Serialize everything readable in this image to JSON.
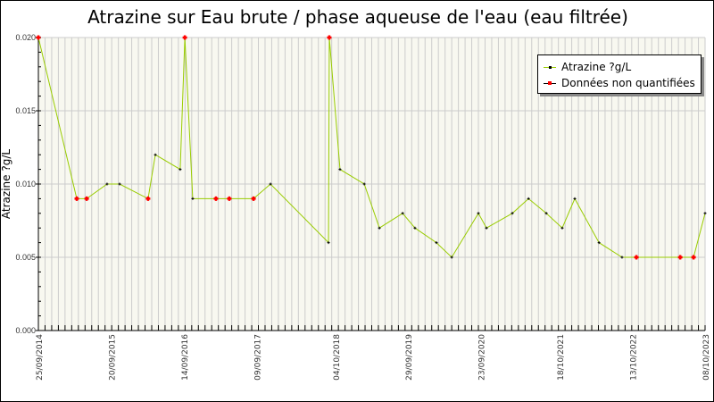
{
  "chart_data": {
    "type": "line",
    "title": "Atrazine sur Eau brute / phase aqueuse de l'eau (eau filtrée)",
    "xlabel": "",
    "ylabel": "Atrazine ?g/L",
    "ylim": [
      0,
      0.02
    ],
    "yticks": [
      "0.000",
      "0.005",
      "0.010",
      "0.015",
      "0.020"
    ],
    "xlim": [
      "2014-09-25",
      "2023-10-08"
    ],
    "xticks": [
      {
        "date": "2014-09-25",
        "label": "25/09/2014"
      },
      {
        "date": "2015-09-20",
        "label": "20/09/2015"
      },
      {
        "date": "2016-09-14",
        "label": "14/09/2016"
      },
      {
        "date": "2017-09-09",
        "label": "09/09/2017"
      },
      {
        "date": "2018-10-04",
        "label": "04/10/2018"
      },
      {
        "date": "2019-09-29",
        "label": "29/09/2019"
      },
      {
        "date": "2020-09-23",
        "label": "23/09/2020"
      },
      {
        "date": "2021-10-18",
        "label": "18/10/2021"
      },
      {
        "date": "2022-10-13",
        "label": "13/10/2022"
      },
      {
        "date": "2023-10-08",
        "label": "08/10/2023"
      }
    ],
    "grid": true,
    "legend_position": "top-right",
    "colors": {
      "line": "#99cc00",
      "quantified": "#000000",
      "non_quantified": "#ff0000",
      "background": "#f8f8f0",
      "grid": "#cccccc"
    },
    "legend": {
      "series": "Atrazine ?g/L",
      "non_quantified": "Données non quantifiées"
    },
    "points": [
      {
        "x": "2014-09-25",
        "y": 0.02,
        "nq": true
      },
      {
        "x": "2015-04-03",
        "y": 0.009,
        "nq": true
      },
      {
        "x": "2015-05-22",
        "y": 0.009,
        "nq": true
      },
      {
        "x": "2015-08-31",
        "y": 0.01,
        "nq": false
      },
      {
        "x": "2015-11-01",
        "y": 0.01,
        "nq": false
      },
      {
        "x": "2016-03-21",
        "y": 0.009,
        "nq": true
      },
      {
        "x": "2016-04-26",
        "y": 0.012,
        "nq": false
      },
      {
        "x": "2016-08-27",
        "y": 0.011,
        "nq": false
      },
      {
        "x": "2016-09-19",
        "y": 0.02,
        "nq": true
      },
      {
        "x": "2016-10-28",
        "y": 0.009,
        "nq": false
      },
      {
        "x": "2017-02-20",
        "y": 0.009,
        "nq": true
      },
      {
        "x": "2017-04-27",
        "y": 0.009,
        "nq": true
      },
      {
        "x": "2017-08-25",
        "y": 0.009,
        "nq": true
      },
      {
        "x": "2017-11-17",
        "y": 0.01,
        "nq": false
      },
      {
        "x": "2018-08-31",
        "y": 0.006,
        "nq": false
      },
      {
        "x": "2018-09-04",
        "y": 0.02,
        "nq": true
      },
      {
        "x": "2018-10-27",
        "y": 0.011,
        "nq": false
      },
      {
        "x": "2019-02-24",
        "y": 0.01,
        "nq": false
      },
      {
        "x": "2019-05-10",
        "y": 0.007,
        "nq": false
      },
      {
        "x": "2019-09-02",
        "y": 0.008,
        "nq": false
      },
      {
        "x": "2019-11-02",
        "y": 0.007,
        "nq": false
      },
      {
        "x": "2020-02-16",
        "y": 0.006,
        "nq": false
      },
      {
        "x": "2020-05-02",
        "y": 0.005,
        "nq": false
      },
      {
        "x": "2020-09-11",
        "y": 0.008,
        "nq": false
      },
      {
        "x": "2020-10-21",
        "y": 0.007,
        "nq": false
      },
      {
        "x": "2021-02-26",
        "y": 0.008,
        "nq": false
      },
      {
        "x": "2021-05-17",
        "y": 0.009,
        "nq": false
      },
      {
        "x": "2021-08-13",
        "y": 0.008,
        "nq": false
      },
      {
        "x": "2021-10-31",
        "y": 0.007,
        "nq": false
      },
      {
        "x": "2022-01-01",
        "y": 0.009,
        "nq": false
      },
      {
        "x": "2022-05-01",
        "y": 0.006,
        "nq": false
      },
      {
        "x": "2022-08-23",
        "y": 0.005,
        "nq": false
      },
      {
        "x": "2022-11-02",
        "y": 0.005,
        "nq": true
      },
      {
        "x": "2023-06-07",
        "y": 0.005,
        "nq": true
      },
      {
        "x": "2023-08-12",
        "y": 0.005,
        "nq": true
      },
      {
        "x": "2023-10-08",
        "y": 0.008,
        "nq": false
      }
    ]
  }
}
